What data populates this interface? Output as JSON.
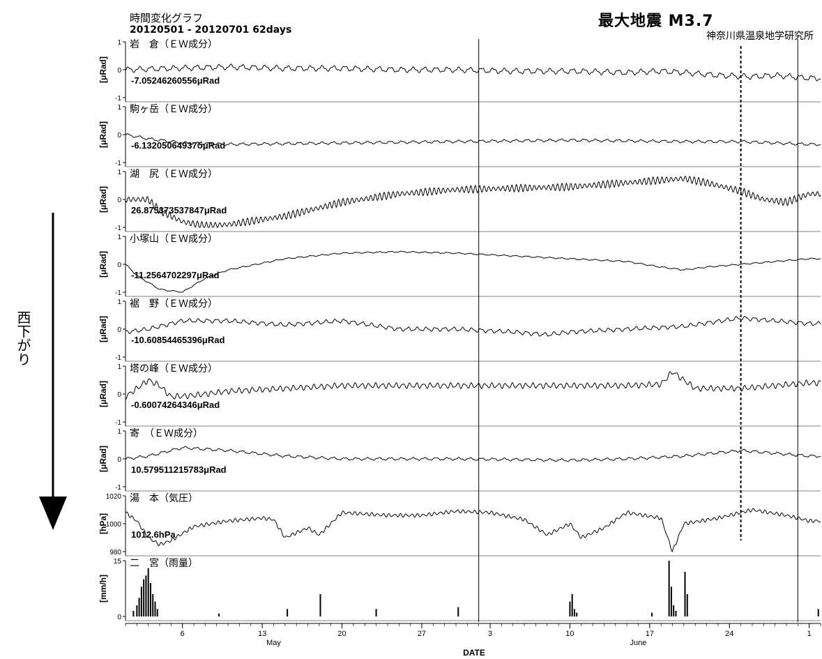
{
  "header": {
    "title": "時間変化グラフ",
    "date_range": "20120501 - 20120701 62days",
    "max_earthquake": "最大地震 M3.7",
    "institute": "神奈川県温泉地学研究所"
  },
  "side_label": "西下がり",
  "colors": {
    "line": "#000000",
    "background": "#ffffff"
  },
  "chart_data": {
    "type": "line",
    "xlabel": "DATE",
    "x_range": [
      "2012-05-01",
      "2012-07-01"
    ],
    "x_ticks": [
      {
        "day": 6,
        "label": "6"
      },
      {
        "day": 13,
        "label": "13"
      },
      {
        "day": 20,
        "label": "20"
      },
      {
        "day": 27,
        "label": "27"
      },
      {
        "day": 33,
        "label": "3"
      },
      {
        "day": 40,
        "label": "10"
      },
      {
        "day": 47,
        "label": "17"
      },
      {
        "day": 54,
        "label": "24"
      },
      {
        "day": 61,
        "label": "1"
      }
    ],
    "month_labels": [
      {
        "day": 14,
        "label": "May"
      },
      {
        "day": 46,
        "label": "June"
      }
    ],
    "earthquake_marker_day": 55,
    "gap_marker_days": [
      32,
      60
    ],
    "panels": [
      {
        "name": "岩　倉（ＥＷ成分）",
        "value_label": "-7.05246260556μRad",
        "ylabel": "[μRad]",
        "ylim": [
          -1,
          1
        ],
        "yticks": [
          "1",
          "0",
          "-1"
        ],
        "points": [
          [
            1,
            0.0
          ],
          [
            5,
            0.05
          ],
          [
            10,
            0.1
          ],
          [
            15,
            0.05
          ],
          [
            20,
            0.05
          ],
          [
            25,
            0.0
          ],
          [
            30,
            0.0
          ],
          [
            35,
            -0.05
          ],
          [
            40,
            -0.05
          ],
          [
            45,
            -0.1
          ],
          [
            48,
            -0.05
          ],
          [
            50,
            -0.1
          ],
          [
            53,
            -0.2
          ],
          [
            56,
            -0.25
          ],
          [
            58,
            -0.2
          ],
          [
            61,
            -0.3
          ]
        ],
        "wiggle": 0.08,
        "wiggle_period": 1.0
      },
      {
        "name": "駒ヶ岳（ＥＷ成分）",
        "value_label": "-6.13205064937бμRad",
        "ylabel": "[μRad]",
        "ylim": [
          -1,
          1
        ],
        "yticks": [
          "1",
          "0",
          "-1"
        ],
        "points": [
          [
            1,
            0.0
          ],
          [
            3,
            -0.15
          ],
          [
            6,
            -0.3
          ],
          [
            10,
            -0.35
          ],
          [
            20,
            -0.3
          ],
          [
            30,
            -0.25
          ],
          [
            40,
            -0.2
          ],
          [
            50,
            -0.25
          ],
          [
            55,
            -0.25
          ],
          [
            61,
            -0.35
          ]
        ],
        "wiggle": 0.04,
        "wiggle_period": 1.0
      },
      {
        "name": "湖　尻（ＥＷ成分）",
        "value_label": "26.875373537847μRad",
        "ylabel": "[μRad]",
        "ylim": [
          -1,
          1
        ],
        "yticks": [
          "1",
          "0",
          "-1"
        ],
        "points": [
          [
            1,
            0.0
          ],
          [
            3,
            0.0
          ],
          [
            4,
            -0.4
          ],
          [
            6,
            -0.8
          ],
          [
            8,
            -0.95
          ],
          [
            10,
            -0.9
          ],
          [
            15,
            -0.6
          ],
          [
            20,
            -0.1
          ],
          [
            25,
            0.2
          ],
          [
            30,
            0.35
          ],
          [
            35,
            0.4
          ],
          [
            40,
            0.45
          ],
          [
            45,
            0.6
          ],
          [
            50,
            0.75
          ],
          [
            52,
            0.6
          ],
          [
            55,
            0.3
          ],
          [
            57,
            0.0
          ],
          [
            59,
            -0.1
          ],
          [
            61,
            0.2
          ]
        ],
        "wiggle": 0.1,
        "wiggle_period": 0.4
      },
      {
        "name": "小塚山（ＥＷ成分）",
        "value_label": "-11.2564702297μRad",
        "ylabel": "[μRad]",
        "ylim": [
          -1,
          1
        ],
        "yticks": [
          "1",
          "0",
          "-1"
        ],
        "points": [
          [
            1,
            0.0
          ],
          [
            2,
            -0.4
          ],
          [
            4,
            -0.9
          ],
          [
            6,
            -1.0
          ],
          [
            8,
            -0.5
          ],
          [
            10,
            -0.2
          ],
          [
            15,
            0.2
          ],
          [
            20,
            0.4
          ],
          [
            25,
            0.45
          ],
          [
            30,
            0.4
          ],
          [
            35,
            0.3
          ],
          [
            40,
            0.2
          ],
          [
            45,
            0.1
          ],
          [
            48,
            -0.1
          ],
          [
            50,
            -0.2
          ],
          [
            52,
            -0.1
          ],
          [
            55,
            0.0
          ],
          [
            58,
            0.1
          ],
          [
            61,
            0.2
          ]
        ],
        "wiggle": 0.02,
        "wiggle_period": 1.0
      },
      {
        "name": "裾　野（ＥＷ成分）",
        "value_label": "-10.60854465396μRad",
        "ylabel": "[μRad]",
        "ylim": [
          -1,
          1
        ],
        "yticks": [
          "1",
          "0",
          "-1"
        ],
        "points": [
          [
            1,
            -0.1
          ],
          [
            3,
            0.0
          ],
          [
            6,
            0.3
          ],
          [
            10,
            0.3
          ],
          [
            15,
            0.15
          ],
          [
            20,
            0.3
          ],
          [
            25,
            0.0
          ],
          [
            30,
            0.0
          ],
          [
            35,
            -0.1
          ],
          [
            38,
            -0.2
          ],
          [
            40,
            -0.1
          ],
          [
            45,
            0.0
          ],
          [
            50,
            0.1
          ],
          [
            55,
            0.4
          ],
          [
            58,
            0.3
          ],
          [
            61,
            0.2
          ]
        ],
        "wiggle": 0.06,
        "wiggle_period": 0.8
      },
      {
        "name": "塔の峰（ＥＷ成分）",
        "value_label": "-0.60074264346μRad",
        "ylabel": "[μRad]",
        "ylim": [
          -1,
          1
        ],
        "yticks": [
          "1",
          "0",
          "-1"
        ],
        "points": [
          [
            1,
            -0.1
          ],
          [
            2,
            0.2
          ],
          [
            3,
            0.5
          ],
          [
            4,
            0.3
          ],
          [
            5,
            -0.1
          ],
          [
            7,
            -0.05
          ],
          [
            10,
            0.1
          ],
          [
            15,
            0.2
          ],
          [
            20,
            0.3
          ],
          [
            25,
            0.3
          ],
          [
            30,
            0.3
          ],
          [
            35,
            0.3
          ],
          [
            40,
            0.3
          ],
          [
            45,
            0.3
          ],
          [
            48,
            0.35
          ],
          [
            49,
            0.8
          ],
          [
            51,
            0.2
          ],
          [
            55,
            0.2
          ],
          [
            58,
            0.3
          ],
          [
            61,
            0.4
          ]
        ],
        "wiggle": 0.08,
        "wiggle_period": 0.6
      },
      {
        "name": "寄　（ＥＷ成分）",
        "value_label": "10.579511215783μRad",
        "ylabel": "[μRad]",
        "ylim": [
          -1,
          1
        ],
        "yticks": [
          "1",
          "0",
          "-1"
        ],
        "points": [
          [
            1,
            0.0
          ],
          [
            3,
            0.1
          ],
          [
            6,
            0.4
          ],
          [
            10,
            0.3
          ],
          [
            15,
            0.1
          ],
          [
            20,
            0.0
          ],
          [
            30,
            0.0
          ],
          [
            40,
            -0.05
          ],
          [
            45,
            0.0
          ],
          [
            50,
            0.1
          ],
          [
            55,
            0.3
          ],
          [
            58,
            0.2
          ],
          [
            61,
            0.1
          ]
        ],
        "wiggle": 0.04,
        "wiggle_period": 1.0
      },
      {
        "name": "湯　本（気圧）",
        "value_label": "1012.6hPa",
        "ylabel": "[hPa]",
        "ylim": [
          980,
          1020
        ],
        "yticks": [
          "1020",
          "1000",
          "980"
        ],
        "points": [
          [
            1,
            1008
          ],
          [
            2,
            1002
          ],
          [
            3,
            990
          ],
          [
            4,
            985
          ],
          [
            5,
            988
          ],
          [
            7,
            998
          ],
          [
            10,
            1002
          ],
          [
            13,
            1004
          ],
          [
            14,
            1003
          ],
          [
            15,
            990
          ],
          [
            17,
            997
          ],
          [
            18,
            992
          ],
          [
            20,
            1008
          ],
          [
            24,
            1006
          ],
          [
            27,
            1006
          ],
          [
            30,
            1009
          ],
          [
            33,
            1008
          ],
          [
            36,
            1003
          ],
          [
            38,
            992
          ],
          [
            40,
            1000
          ],
          [
            41,
            990
          ],
          [
            43,
            997
          ],
          [
            45,
            1008
          ],
          [
            48,
            1004
          ],
          [
            49,
            980
          ],
          [
            50,
            1000
          ],
          [
            53,
            1004
          ],
          [
            56,
            1010
          ],
          [
            59,
            1006
          ],
          [
            61,
            1002
          ]
        ],
        "wiggle": 1.0,
        "wiggle_period": 0.5
      },
      {
        "name": "二　宮（雨量）",
        "value_label": "",
        "ylabel": "[mm/h]",
        "ylim": [
          0,
          15
        ],
        "yticks": [
          "15",
          "0"
        ],
        "bars": [
          [
            1.7,
            1.5
          ],
          [
            2.0,
            3
          ],
          [
            2.2,
            5
          ],
          [
            2.4,
            8
          ],
          [
            2.6,
            10
          ],
          [
            2.8,
            11
          ],
          [
            3.0,
            13
          ],
          [
            3.2,
            9
          ],
          [
            3.4,
            6
          ],
          [
            3.6,
            4
          ],
          [
            3.8,
            2
          ],
          [
            9.2,
            0.8
          ],
          [
            15.2,
            2
          ],
          [
            18.1,
            6
          ],
          [
            23.0,
            2
          ],
          [
            30.2,
            2.5
          ],
          [
            40.0,
            4
          ],
          [
            40.2,
            6
          ],
          [
            40.4,
            2
          ],
          [
            40.6,
            1
          ],
          [
            47.2,
            1
          ],
          [
            48.7,
            15
          ],
          [
            48.9,
            8
          ],
          [
            49.1,
            3
          ],
          [
            49.3,
            1.5
          ],
          [
            50.1,
            12
          ],
          [
            50.3,
            6
          ],
          [
            61.8,
            2
          ]
        ],
        "wiggle": 0,
        "wiggle_period": 1.0
      }
    ]
  }
}
